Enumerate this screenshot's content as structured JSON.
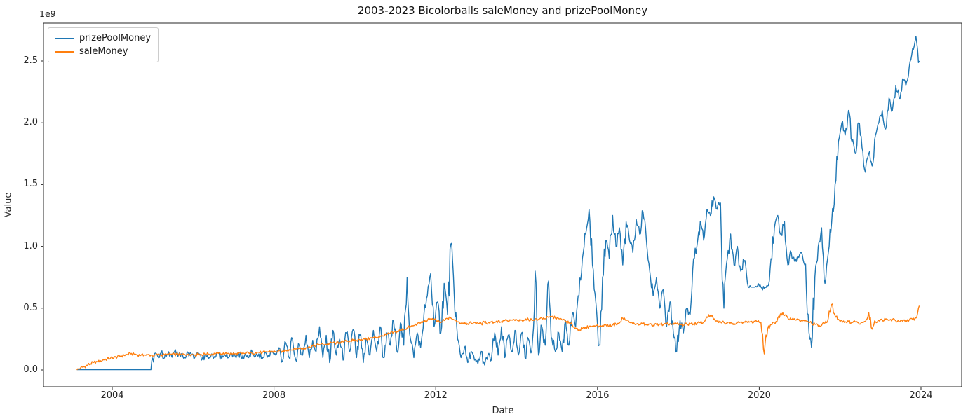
{
  "figure": {
    "title": "2003-2023 Bicolorballs saleMoney and prizePoolMoney",
    "xlabel": "Date",
    "ylabel": "Value",
    "y_offset_label": "1e9",
    "background_color": "#ffffff",
    "axes_color": "#262626"
  },
  "legend": {
    "position": "upper left",
    "entries": [
      {
        "label": "prizePoolMoney",
        "color": "#1f77b4"
      },
      {
        "label": "saleMoney",
        "color": "#ff7f0e"
      }
    ]
  },
  "chart_data": {
    "type": "line",
    "title": "2003-2023 Bicolorballs saleMoney and prizePoolMoney",
    "xlabel": "Date",
    "ylabel": "Value",
    "value_unit": "1e9 (values below are in billions, per y-axis offset label 1e9)",
    "grid": false,
    "legend_position": "upper left",
    "x_ticks": [
      2004,
      2008,
      2012,
      2016,
      2020,
      2024
    ],
    "y_ticks_1e9": [
      0.0,
      0.5,
      1.0,
      1.5,
      2.0,
      2.5
    ],
    "xlim_years": [
      2002.3,
      2025.0
    ],
    "ylim_1e9": [
      -0.136,
      2.806
    ],
    "x_start_year": 2003.125,
    "x_step_years": 0.0833333,
    "series": [
      {
        "name": "prizePoolMoney",
        "color": "#1f77b4",
        "values_1e9": [
          0.002,
          0.002,
          0.002,
          0.002,
          0.002,
          0.002,
          0.002,
          0.002,
          0.002,
          0.002,
          0.002,
          0.002,
          0.002,
          0.002,
          0.002,
          0.002,
          0.002,
          0.002,
          0.002,
          0.002,
          0.002,
          0.002,
          0.002,
          0.13,
          0.11,
          0.14,
          0.1,
          0.13,
          0.12,
          0.15,
          0.11,
          0.13,
          0.1,
          0.14,
          0.12,
          0.1,
          0.13,
          0.08,
          0.12,
          0.09,
          0.13,
          0.1,
          0.14,
          0.09,
          0.12,
          0.1,
          0.13,
          0.11,
          0.14,
          0.09,
          0.13,
          0.1,
          0.15,
          0.11,
          0.13,
          0.09,
          0.14,
          0.11,
          0.15,
          0.12,
          0.18,
          0.07,
          0.22,
          0.1,
          0.25,
          0.08,
          0.2,
          0.12,
          0.28,
          0.1,
          0.24,
          0.15,
          0.35,
          0.1,
          0.28,
          0.06,
          0.32,
          0.12,
          0.25,
          0.08,
          0.3,
          0.15,
          0.33,
          0.1,
          0.28,
          0.06,
          0.25,
          0.12,
          0.32,
          0.15,
          0.35,
          0.1,
          0.3,
          0.2,
          0.4,
          0.15,
          0.38,
          0.2,
          0.75,
          0.25,
          0.1,
          0.3,
          0.18,
          0.45,
          0.6,
          0.78,
          0.35,
          0.55,
          0.3,
          0.7,
          0.45,
          1.02,
          0.6,
          0.25,
          0.1,
          0.18,
          0.06,
          0.15,
          0.08,
          0.05,
          0.15,
          0.04,
          0.12,
          0.08,
          0.3,
          0.12,
          0.35,
          0.1,
          0.28,
          0.15,
          0.32,
          0.12,
          0.3,
          0.1,
          0.25,
          0.15,
          0.8,
          0.12,
          0.35,
          0.2,
          0.72,
          0.25,
          0.15,
          0.3,
          0.15,
          0.4,
          0.2,
          0.45,
          0.35,
          0.6,
          0.9,
          1.1,
          1.3,
          0.85,
          0.55,
          0.2,
          0.75,
          1.05,
          0.9,
          1.25,
          1.0,
          1.15,
          0.85,
          1.2,
          1.05,
          0.95,
          1.22,
          1.1,
          1.28,
          1.05,
          0.8,
          0.6,
          0.75,
          0.5,
          0.65,
          0.35,
          0.55,
          0.3,
          0.15,
          0.4,
          0.3,
          0.5,
          0.45,
          0.9,
          1.0,
          1.2,
          1.05,
          1.3,
          1.25,
          1.4,
          1.3,
          1.35,
          0.5,
          0.9,
          1.1,
          0.85,
          1.0,
          0.8,
          0.88,
          0.7,
          0.67,
          0.67,
          0.68,
          0.67,
          0.66,
          0.68,
          0.9,
          1.15,
          1.25,
          1.1,
          1.2,
          0.85,
          0.95,
          0.88,
          0.92,
          0.95,
          0.85,
          0.45,
          0.18,
          0.75,
          1.0,
          1.15,
          0.7,
          0.95,
          1.2,
          1.5,
          1.85,
          2.0,
          1.9,
          2.1,
          1.85,
          1.75,
          2.0,
          1.8,
          1.6,
          1.75,
          1.65,
          1.9,
          2.0,
          2.1,
          1.95,
          2.2,
          2.1,
          2.3,
          2.2,
          2.35,
          2.3,
          2.45,
          2.6,
          2.7,
          2.5
        ]
      },
      {
        "name": "saleMoney",
        "color": "#ff7f0e",
        "values_1e9": [
          0.0,
          0.012,
          0.025,
          0.038,
          0.05,
          0.06,
          0.068,
          0.075,
          0.082,
          0.09,
          0.096,
          0.1,
          0.105,
          0.112,
          0.118,
          0.125,
          0.13,
          0.128,
          0.122,
          0.118,
          0.12,
          0.123,
          0.12,
          0.118,
          0.122,
          0.125,
          0.12,
          0.123,
          0.127,
          0.125,
          0.128,
          0.124,
          0.126,
          0.128,
          0.125,
          0.122,
          0.126,
          0.124,
          0.128,
          0.13,
          0.127,
          0.13,
          0.133,
          0.13,
          0.132,
          0.135,
          0.132,
          0.13,
          0.134,
          0.131,
          0.136,
          0.138,
          0.135,
          0.14,
          0.143,
          0.14,
          0.145,
          0.148,
          0.15,
          0.148,
          0.155,
          0.152,
          0.16,
          0.165,
          0.162,
          0.17,
          0.175,
          0.172,
          0.18,
          0.188,
          0.195,
          0.2,
          0.205,
          0.21,
          0.208,
          0.215,
          0.22,
          0.218,
          0.225,
          0.228,
          0.232,
          0.235,
          0.24,
          0.238,
          0.245,
          0.25,
          0.248,
          0.255,
          0.26,
          0.265,
          0.27,
          0.275,
          0.285,
          0.295,
          0.305,
          0.31,
          0.32,
          0.33,
          0.34,
          0.35,
          0.36,
          0.37,
          0.38,
          0.39,
          0.4,
          0.415,
          0.41,
          0.395,
          0.385,
          0.4,
          0.415,
          0.42,
          0.405,
          0.39,
          0.38,
          0.385,
          0.375,
          0.38,
          0.385,
          0.38,
          0.375,
          0.385,
          0.38,
          0.39,
          0.385,
          0.395,
          0.39,
          0.4,
          0.395,
          0.405,
          0.4,
          0.398,
          0.405,
          0.4,
          0.41,
          0.405,
          0.415,
          0.41,
          0.42,
          0.415,
          0.425,
          0.43,
          0.42,
          0.415,
          0.405,
          0.395,
          0.38,
          0.365,
          0.34,
          0.325,
          0.335,
          0.345,
          0.35,
          0.355,
          0.36,
          0.355,
          0.36,
          0.365,
          0.358,
          0.365,
          0.37,
          0.38,
          0.42,
          0.4,
          0.385,
          0.375,
          0.37,
          0.368,
          0.372,
          0.365,
          0.37,
          0.362,
          0.368,
          0.372,
          0.365,
          0.37,
          0.375,
          0.368,
          0.372,
          0.368,
          0.362,
          0.37,
          0.375,
          0.372,
          0.378,
          0.382,
          0.388,
          0.43,
          0.44,
          0.41,
          0.395,
          0.39,
          0.385,
          0.38,
          0.385,
          0.378,
          0.382,
          0.388,
          0.392,
          0.385,
          0.39,
          0.395,
          0.39,
          0.385,
          0.13,
          0.33,
          0.37,
          0.38,
          0.42,
          0.46,
          0.44,
          0.42,
          0.41,
          0.415,
          0.405,
          0.4,
          0.395,
          0.39,
          0.38,
          0.37,
          0.355,
          0.36,
          0.38,
          0.42,
          0.53,
          0.44,
          0.41,
          0.4,
          0.39,
          0.395,
          0.385,
          0.39,
          0.38,
          0.385,
          0.39,
          0.465,
          0.33,
          0.39,
          0.4,
          0.405,
          0.41,
          0.4,
          0.408,
          0.398,
          0.39,
          0.395,
          0.4,
          0.405,
          0.41,
          0.42,
          0.52
        ]
      }
    ]
  }
}
